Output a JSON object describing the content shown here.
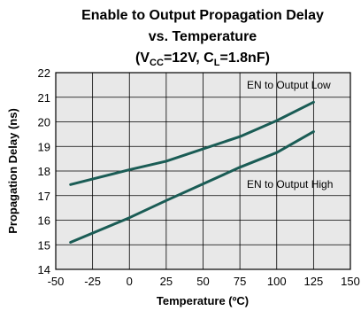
{
  "chart_data": {
    "type": "line",
    "title": {
      "line1": "Enable to Output Propagation Delay",
      "line2": "vs. Temperature",
      "line3_prefix": "(V",
      "line3_sub1": "CC",
      "line3_mid": "=12V, C",
      "line3_sub2": "L",
      "line3_suffix": "=1.8nF)"
    },
    "xlabel": "Temperature (ºC)",
    "ylabel": "Propagation Delay (ns)",
    "xlim": [
      -50,
      150
    ],
    "ylim": [
      14,
      22
    ],
    "xticks": [
      -50,
      -25,
      0,
      25,
      50,
      75,
      100,
      125,
      150
    ],
    "yticks": [
      14,
      15,
      16,
      17,
      18,
      19,
      20,
      21,
      22
    ],
    "grid": true,
    "series": [
      {
        "name": "EN to Output Low",
        "x": [
          -40,
          0,
          25,
          75,
          100,
          125
        ],
        "y": [
          17.45,
          18.05,
          18.4,
          19.4,
          20.05,
          20.8
        ]
      },
      {
        "name": "EN to Output High",
        "x": [
          -40,
          0,
          25,
          75,
          100,
          125
        ],
        "y": [
          15.1,
          16.1,
          16.8,
          18.15,
          18.75,
          19.6
        ]
      }
    ],
    "colors": {
      "line": "#1a5c55",
      "plot_background": "#e8e8e8"
    }
  }
}
